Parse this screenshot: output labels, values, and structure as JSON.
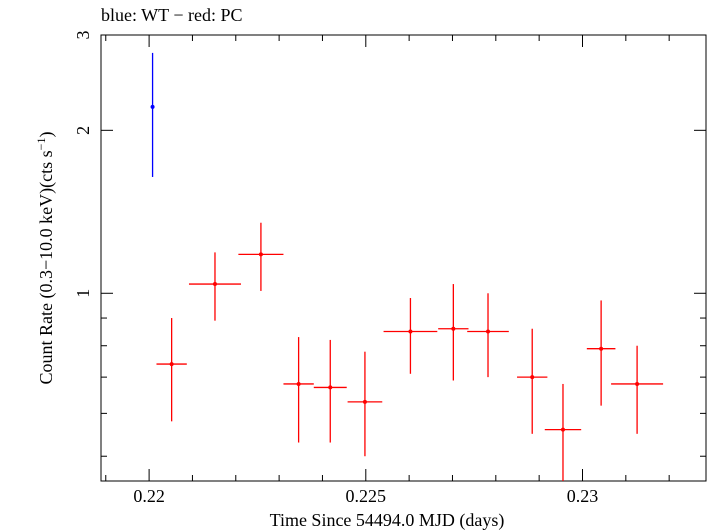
{
  "chart_data": {
    "type": "scatter",
    "title": "blue: WT − red: PC",
    "xlabel": "Time Since 54494.0 MJD (days)",
    "ylabel_main": "Count Rate (0.3−10.0 keV)(cts s",
    "ylabel_sup": "−1",
    "ylabel_close": ")",
    "xlim": [
      0.21889,
      0.23285
    ],
    "ylim": [
      0.45,
      3.0
    ],
    "y_scale": "log",
    "x_ticks": [
      {
        "value": 0.22,
        "label": "0.22"
      },
      {
        "value": 0.225,
        "label": "0.225"
      },
      {
        "value": 0.23,
        "label": "0.23"
      }
    ],
    "x_minor_ticks": [
      0.219,
      0.221,
      0.222,
      0.223,
      0.224,
      0.226,
      0.227,
      0.228,
      0.229,
      0.231,
      0.232
    ],
    "y_ticks": [
      {
        "value": 1,
        "label": "1"
      },
      {
        "value": 2,
        "label": "2"
      },
      {
        "value": 3,
        "label": "3"
      }
    ],
    "y_minor_ticks": [
      0.5,
      0.6,
      0.7,
      0.8,
      0.9
    ],
    "series": [
      {
        "name": "WT",
        "color": "#0000ff",
        "points": [
          {
            "x": 0.22008,
            "xerr": 0.0,
            "y": 2.21,
            "ylo": 1.64,
            "yhi": 2.78
          }
        ]
      },
      {
        "name": "PC",
        "color": "#ff0000",
        "points": [
          {
            "x": 0.22052,
            "xerr": 0.00035,
            "y": 0.74,
            "ylo": 0.58,
            "yhi": 0.9
          },
          {
            "x": 0.22152,
            "xerr": 0.0006,
            "y": 1.04,
            "ylo": 0.89,
            "yhi": 1.19
          },
          {
            "x": 0.22258,
            "xerr": 0.00052,
            "y": 1.18,
            "ylo": 1.01,
            "yhi": 1.35
          },
          {
            "x": 0.22345,
            "xerr": 0.00035,
            "y": 0.68,
            "ylo": 0.53,
            "yhi": 0.83
          },
          {
            "x": 0.22418,
            "xerr": 0.00038,
            "y": 0.67,
            "ylo": 0.53,
            "yhi": 0.82
          },
          {
            "x": 0.22498,
            "xerr": 0.0004,
            "y": 0.63,
            "ylo": 0.5,
            "yhi": 0.78
          },
          {
            "x": 0.22603,
            "xerr": 0.00062,
            "y": 0.85,
            "ylo": 0.71,
            "yhi": 0.98
          },
          {
            "x": 0.22702,
            "xerr": 0.00035,
            "y": 0.86,
            "ylo": 0.69,
            "yhi": 1.04
          },
          {
            "x": 0.22782,
            "xerr": 0.00048,
            "y": 0.85,
            "ylo": 0.7,
            "yhi": 1.0
          },
          {
            "x": 0.22884,
            "xerr": 0.00035,
            "y": 0.7,
            "ylo": 0.55,
            "yhi": 0.86
          },
          {
            "x": 0.22955,
            "xerr": 0.00042,
            "y": 0.56,
            "ylo": 0.45,
            "yhi": 0.68
          },
          {
            "x": 0.23043,
            "xerr": 0.00033,
            "y": 0.79,
            "ylo": 0.62,
            "yhi": 0.97
          },
          {
            "x": 0.23126,
            "xerr": 0.0006,
            "y": 0.68,
            "ylo": 0.55,
            "yhi": 0.8
          }
        ]
      }
    ]
  }
}
